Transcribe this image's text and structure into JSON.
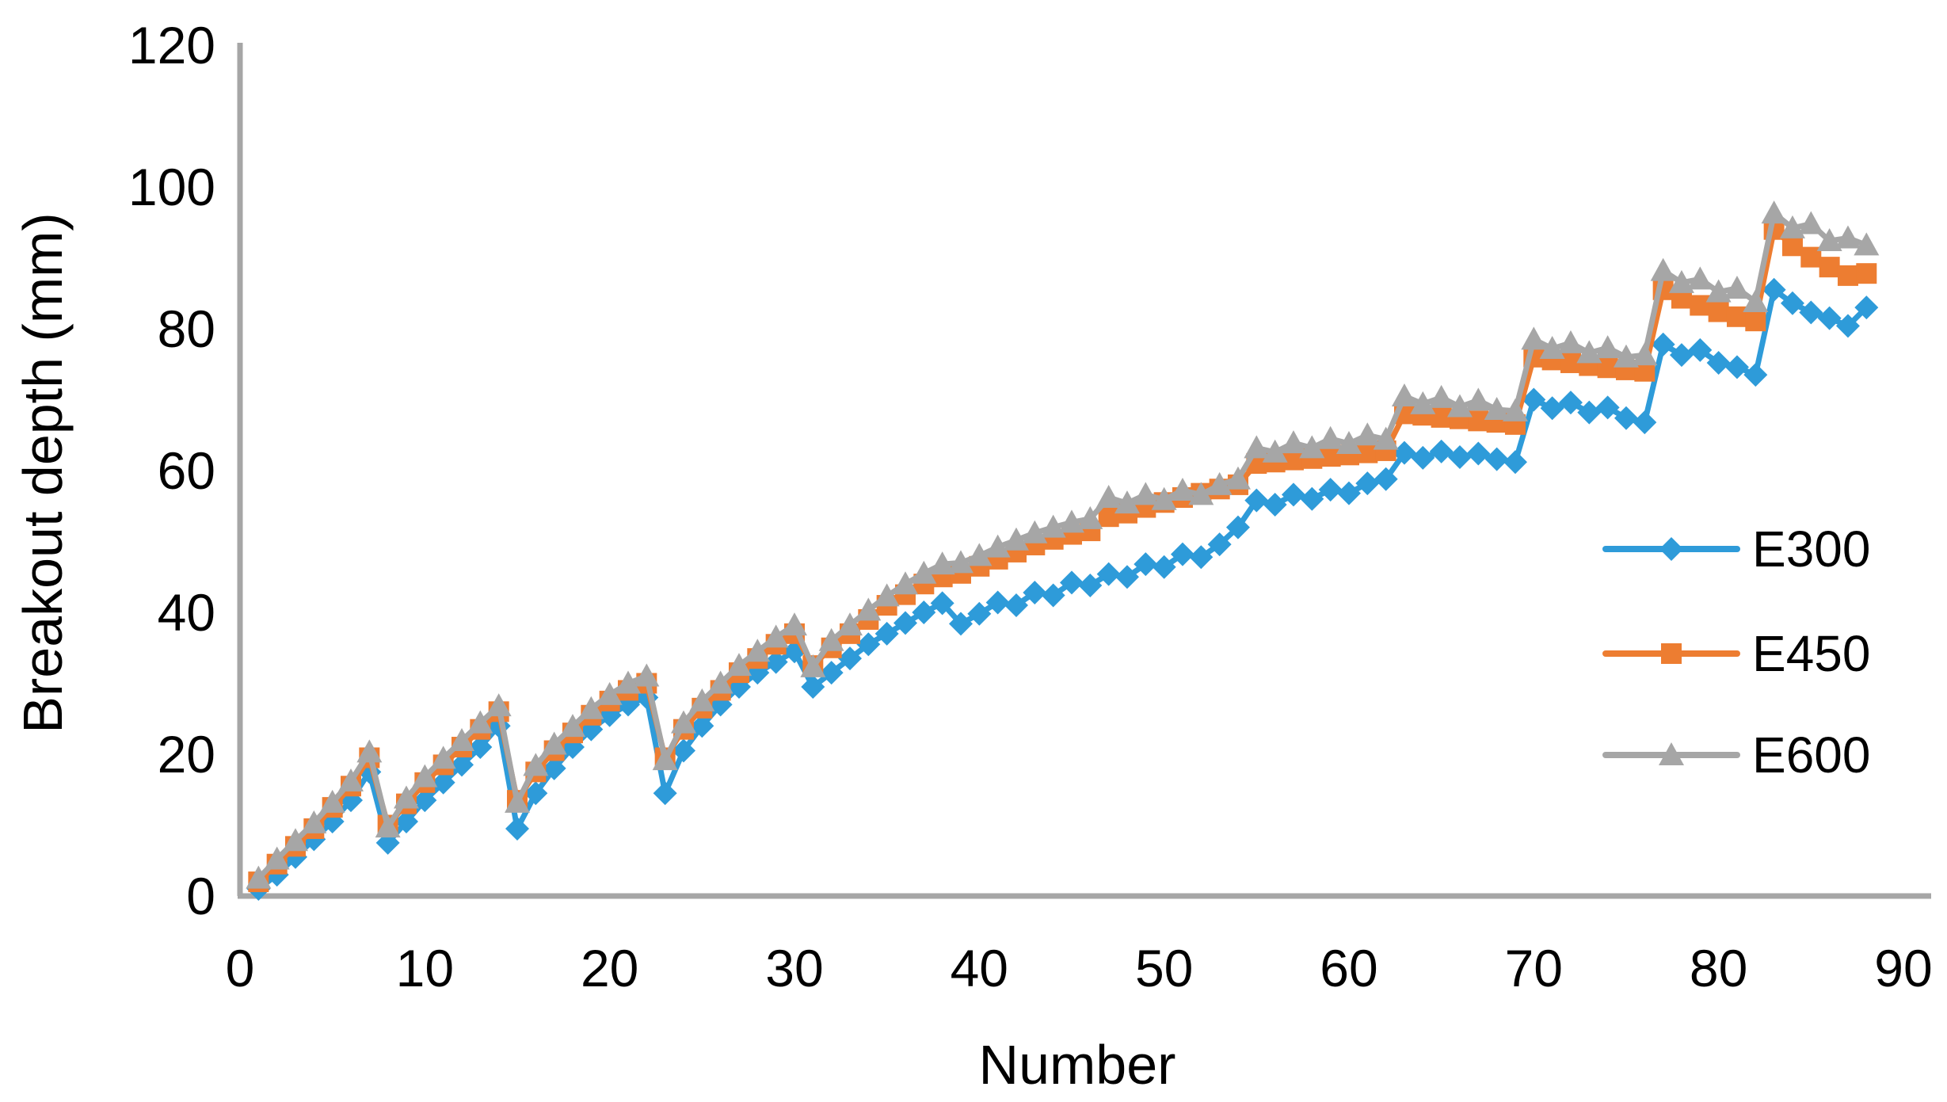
{
  "figure": {
    "background": "#ffffff",
    "axis_color": "#a6a6a6",
    "text_color": "#000000",
    "legend": {
      "position": "right-middle",
      "entries": [
        {
          "label": "E300",
          "color": "#2e9bd9",
          "marker": "diamond"
        },
        {
          "label": "E450",
          "color": "#ed7d31",
          "marker": "square"
        },
        {
          "label": "E600",
          "color": "#a6a6a6",
          "marker": "triangle"
        }
      ]
    }
  },
  "chart_data": {
    "type": "line",
    "title": "",
    "xlabel": "Number",
    "ylabel": "Breakout depth (mm)",
    "xlim": [
      0,
      90
    ],
    "ylim": [
      0,
      120
    ],
    "x_ticks": [
      0,
      10,
      20,
      30,
      40,
      50,
      60,
      70,
      80,
      90
    ],
    "y_ticks": [
      0,
      20,
      40,
      60,
      80,
      100,
      120
    ],
    "grid": false,
    "legend_position": "right-middle",
    "x": [
      1,
      2,
      3,
      4,
      5,
      6,
      7,
      8,
      9,
      10,
      11,
      12,
      13,
      14,
      15,
      16,
      17,
      18,
      19,
      20,
      21,
      22,
      23,
      24,
      25,
      26,
      27,
      28,
      29,
      30,
      31,
      32,
      33,
      34,
      35,
      36,
      37,
      38,
      39,
      40,
      41,
      42,
      43,
      44,
      45,
      46,
      47,
      48,
      49,
      50,
      51,
      52,
      53,
      54,
      55,
      56,
      57,
      58,
      59,
      60,
      61,
      62,
      63,
      64,
      65,
      66,
      67,
      68,
      69,
      70,
      71,
      72,
      73,
      74,
      75,
      76,
      77,
      78,
      79,
      80,
      81,
      82,
      83,
      84,
      85,
      86,
      87,
      88
    ],
    "series": [
      {
        "name": "E300",
        "color": "#2e9bd9",
        "marker": "diamond",
        "values": [
          1.0,
          3.0,
          5.5,
          8.0,
          10.5,
          13.5,
          17.5,
          7.5,
          10.5,
          13.5,
          16.0,
          18.5,
          21.0,
          24.0,
          9.5,
          14.5,
          18.0,
          21.0,
          23.5,
          25.5,
          27.0,
          28.0,
          14.5,
          20.5,
          24.0,
          27.0,
          29.5,
          31.5,
          33.0,
          34.5,
          29.5,
          31.5,
          33.5,
          35.5,
          37.0,
          38.5,
          40.0,
          41.3,
          38.4,
          39.8,
          41.4,
          41.0,
          42.8,
          42.4,
          44.2,
          43.8,
          45.4,
          45.0,
          46.8,
          46.4,
          48.2,
          47.8,
          49.6,
          52.0,
          55.8,
          55.2,
          56.6,
          56.0,
          57.3,
          56.8,
          58.2,
          58.8,
          62.5,
          61.8,
          62.7,
          61.9,
          62.4,
          61.6,
          61.2,
          70.0,
          68.8,
          69.6,
          68.2,
          68.9,
          67.4,
          66.8,
          77.8,
          76.3,
          77.0,
          75.2,
          74.6,
          73.5,
          85.5,
          83.6,
          82.3,
          81.5,
          80.4,
          83.0
        ]
      },
      {
        "name": "E450",
        "color": "#ed7d31",
        "marker": "square",
        "values": [
          2.0,
          4.5,
          7.0,
          9.5,
          12.5,
          15.5,
          19.5,
          10.0,
          13.0,
          16.0,
          18.5,
          21.0,
          23.5,
          26.0,
          13.5,
          17.5,
          20.5,
          23.0,
          25.5,
          27.5,
          29.0,
          30.0,
          19.5,
          23.5,
          26.5,
          29.0,
          31.5,
          33.5,
          35.5,
          37.0,
          32.5,
          35.0,
          37.0,
          39.0,
          41.0,
          42.5,
          44.0,
          45.0,
          45.5,
          46.5,
          47.5,
          48.5,
          49.5,
          50.3,
          51.0,
          51.5,
          53.5,
          54.0,
          54.8,
          55.5,
          56.2,
          56.8,
          57.4,
          58.0,
          61.0,
          61.2,
          61.5,
          61.7,
          62.0,
          62.2,
          62.5,
          62.8,
          68.0,
          67.8,
          67.5,
          67.3,
          67.0,
          66.8,
          66.5,
          76.0,
          75.6,
          75.2,
          74.8,
          74.5,
          74.2,
          74.0,
          85.5,
          84.3,
          83.3,
          82.4,
          81.7,
          81.1,
          94.0,
          91.7,
          90.1,
          88.7,
          87.5,
          87.8
        ]
      },
      {
        "name": "E600",
        "color": "#a6a6a6",
        "marker": "triangle",
        "values": [
          2.5,
          5.2,
          7.8,
          10.3,
          13.2,
          16.2,
          20.3,
          9.7,
          13.8,
          16.8,
          19.4,
          21.9,
          24.4,
          26.8,
          13.2,
          18.4,
          21.4,
          23.9,
          26.4,
          28.4,
          30.0,
          31.0,
          19.2,
          24.4,
          27.5,
          30.0,
          32.5,
          34.5,
          36.5,
          38.2,
          32.3,
          36.0,
          38.2,
          40.3,
          42.3,
          44.0,
          45.5,
          46.8,
          47.0,
          48.0,
          49.2,
          50.2,
          51.2,
          52.0,
          52.7,
          53.2,
          56.2,
          55.4,
          56.6,
          55.9,
          57.2,
          56.6,
          58.0,
          58.8,
          63.2,
          62.6,
          63.9,
          63.2,
          64.5,
          63.8,
          65.0,
          64.4,
          70.5,
          69.4,
          70.3,
          69.0,
          69.9,
          68.6,
          68.4,
          78.5,
          77.2,
          78.0,
          76.6,
          77.3,
          76.0,
          76.3,
          88.2,
          86.5,
          87.0,
          85.2,
          85.7,
          83.8,
          96.3,
          94.2,
          94.8,
          92.4,
          92.8,
          91.8
        ]
      }
    ]
  }
}
